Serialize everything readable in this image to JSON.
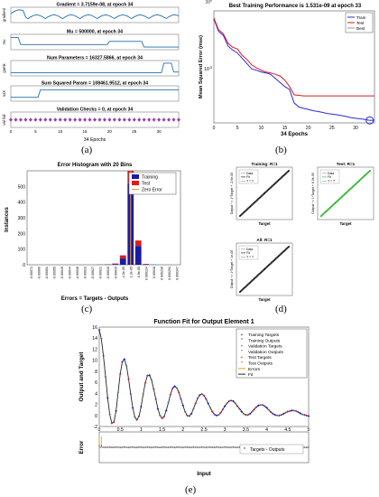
{
  "captions": {
    "a": "(a)",
    "b": "(b)",
    "c": "(c)",
    "d": "(d)",
    "e": "(e)"
  },
  "panel_a": {
    "xlabel": "34 Epochs",
    "subplots": [
      {
        "title": "Gradient = 3.7159e-08, at epoch 34",
        "ylabel": "gradient"
      },
      {
        "title": "Mu = 500000, at epoch 34",
        "ylabel": "mu"
      },
      {
        "title": "Num Parameters = 16327.5866, at epoch 34",
        "ylabel": "gamk"
      },
      {
        "title": "Sum Squared Param = 108461.9512, at epoch 34",
        "ylabel": "ssX"
      },
      {
        "title": "Validation Checks = 0, at epoch 34",
        "ylabel": "val fail"
      }
    ],
    "ticks": [
      "0",
      "5",
      "10",
      "15",
      "20",
      "25",
      "30"
    ]
  },
  "panel_d": {
    "training_title": "Training: R=1",
    "test_title": "Test: R=1",
    "all_title": "All: R=1",
    "xlabel": "Target",
    "ylabel_training": "Output ~= 1*Target + -2.6e-06",
    "ylabel_test": "Output ~= 1*Target + 6.3e-06",
    "ylabel_all": "Output ~= 1*Target + 1e-06",
    "legend": [
      "Data",
      "Fit",
      "Y = T"
    ]
  },
  "chart_data": [
    {
      "id": "b",
      "type": "line",
      "title": "Best Training Performance is 1.531e-09 at epoch 33",
      "xlabel": "34 Epochs",
      "ylabel": "Mean Squared Error (mse)",
      "yscale": "log",
      "xlim": [
        0,
        34
      ],
      "x": [
        0,
        1,
        2,
        3,
        4,
        5,
        6,
        7,
        8,
        9,
        10,
        11,
        12,
        13,
        14,
        15,
        16,
        17,
        18,
        19,
        20,
        21,
        22,
        23,
        24,
        25,
        26,
        27,
        28,
        29,
        30,
        31,
        32,
        33,
        34
      ],
      "series": [
        {
          "name": "Train",
          "color": "#2b2bd9",
          "values": [
            0.05,
            0.006,
            0.003,
            0.0005,
            0.00025,
            0.00015,
            6e-05,
            2.5e-05,
            1e-05,
            8e-06,
            6e-06,
            5e-06,
            4e-06,
            2e-06,
            1e-06,
            5e-07,
            3e-07,
            3e-08,
            1.5e-08,
            1.2e-08,
            1e-08,
            8e-09,
            7e-09,
            6e-09,
            5e-09,
            4.5e-09,
            4e-09,
            3.5e-09,
            3e-09,
            2.5e-09,
            2.2e-09,
            2e-09,
            1.8e-09,
            1.531e-09,
            1.6e-09
          ]
        },
        {
          "name": "Test",
          "color": "#dd1a1a",
          "values": [
            0.06,
            0.008,
            0.004,
            0.0008,
            0.0004,
            0.0003,
            0.0001,
            5e-05,
            2e-05,
            1.2e-05,
            8e-06,
            6e-06,
            5e-06,
            4e-06,
            3e-06,
            1.5e-06,
            5e-07,
            1.2e-07,
            1.1e-07,
            1e-07,
            1e-07,
            1e-07,
            1e-07,
            1e-07,
            1e-07,
            1e-07,
            1e-07,
            1e-07,
            1e-07,
            1e-07,
            1e-07,
            1e-07,
            1e-07,
            1e-07,
            1e-07
          ]
        }
      ],
      "best": {
        "x": 33,
        "y": 1.531e-09
      },
      "legend": [
        "Train",
        "Test",
        "Best"
      ],
      "ytick_labels": [
        "10^0",
        "10^-5"
      ]
    },
    {
      "id": "c",
      "type": "bar",
      "title": "Error Histogram with 20 Bins",
      "xlabel": "Errors = Targets - Outputs",
      "ylabel": "Instances",
      "ylim": [
        0,
        600
      ],
      "yticks": [
        0,
        100,
        200,
        300,
        400,
        500
      ],
      "categories": [
        "-0.00072",
        "-0.00066",
        "-0.00061",
        "-0.00055",
        "-0.00049",
        "-0.00044",
        "-0.00038",
        "-0.00033",
        "-0.00027",
        "-0.00021",
        "-0.00016",
        "-0.00010",
        "-4.3e-05",
        "1.3e-05",
        "6.9e-05",
        "0.000124",
        "0.00018",
        "0.000236",
        "0.000291",
        "0.000347"
      ],
      "series": [
        {
          "name": "Training",
          "color": "#1a1aa6",
          "values": [
            0,
            0,
            0,
            0,
            0,
            0,
            0,
            0,
            0,
            1,
            2,
            5,
            40,
            520,
            120,
            3,
            1,
            0,
            0,
            0
          ]
        },
        {
          "name": "Test",
          "color": "#d81e1e",
          "values": [
            0,
            0,
            0,
            0,
            0,
            0,
            0,
            0,
            0,
            0,
            1,
            3,
            20,
            80,
            35,
            2,
            0,
            0,
            0,
            0
          ]
        }
      ],
      "zero_error_label": "Zero Error",
      "legend": [
        "Training",
        "Test",
        "Zero Error"
      ]
    },
    {
      "id": "e",
      "type": "line",
      "title": "Function Fit for Output Element 1",
      "xlabel": "Input",
      "ylabel": "Output and Target",
      "xlim": [
        0,
        5
      ],
      "ylim": [
        -2,
        16
      ],
      "xticks": [
        "0",
        "0.5",
        "1",
        "1.5",
        "2",
        "2.5",
        "3",
        "3.5",
        "4",
        "4.5",
        "5"
      ],
      "yticks": [
        "-2",
        "0",
        "2",
        "4",
        "6",
        "8",
        "10",
        "12",
        "14",
        "16"
      ],
      "x": [
        0,
        0.05,
        0.1,
        0.15,
        0.2,
        0.25,
        0.3,
        0.35,
        0.4,
        0.45,
        0.5,
        0.55,
        0.6,
        0.65,
        0.7,
        0.75,
        0.8,
        0.85,
        0.9,
        0.95,
        1,
        1.05,
        1.1,
        1.15,
        1.2,
        1.25,
        1.3,
        1.35,
        1.4,
        1.45,
        1.5,
        1.55,
        1.6,
        1.65,
        1.7,
        1.75,
        1.8,
        1.85,
        1.9,
        1.95,
        2,
        2.05,
        2.1,
        2.15,
        2.2,
        2.25,
        2.3,
        2.35,
        2.4,
        2.45,
        2.5,
        2.55,
        2.6,
        2.65,
        2.7,
        2.75,
        2.8,
        2.85,
        2.9,
        2.95,
        3,
        3.05,
        3.1,
        3.15,
        3.2,
        3.25,
        3.3,
        3.35,
        3.4,
        3.45,
        3.5,
        3.55,
        3.6,
        3.65,
        3.7,
        3.75,
        3.8,
        3.85,
        3.9,
        3.95,
        4,
        4.05,
        4.1,
        4.15,
        4.2,
        4.25,
        4.3,
        4.35,
        4.4,
        4.45,
        4.5,
        4.55,
        4.6,
        4.65,
        4.7,
        4.75,
        4.8,
        4.85,
        4.9,
        4.95,
        5
      ],
      "values": [
        15.5,
        13.9,
        10.8,
        7.0,
        3.2,
        0.2,
        -1.4,
        -1.2,
        0.8,
        4.2,
        7.5,
        9.7,
        10.2,
        9.0,
        6.6,
        3.9,
        1.4,
        -0.3,
        -0.8,
        -0.1,
        1.6,
        3.9,
        5.9,
        7.2,
        7.3,
        6.4,
        4.8,
        3.0,
        1.2,
        0.0,
        -0.5,
        -0.2,
        0.9,
        2.3,
        3.8,
        4.9,
        5.3,
        5.0,
        4.2,
        3.0,
        1.8,
        0.7,
        0.0,
        -0.1,
        0.3,
        1.2,
        2.2,
        3.1,
        3.7,
        3.9,
        3.6,
        3.0,
        2.2,
        1.4,
        0.7,
        0.2,
        0.0,
        0.1,
        0.5,
        1.1,
        1.7,
        2.2,
        2.6,
        2.7,
        2.6,
        2.2,
        1.7,
        1.2,
        0.7,
        0.3,
        0.1,
        0.1,
        0.3,
        0.7,
        1.1,
        1.5,
        1.8,
        1.9,
        1.9,
        1.7,
        1.4,
        1.0,
        0.6,
        0.3,
        0.1,
        0.0,
        0.0,
        0.1,
        0.3,
        0.5,
        0.7,
        0.8,
        0.9,
        0.9,
        0.8,
        0.6,
        0.4,
        0.2,
        0.1,
        0.0,
        -0.1
      ],
      "legend": [
        "Training Targets",
        "Training Outputs",
        "Validation Targets",
        "Validation Outputs",
        "Test Targets",
        "Test Outputs",
        "Errors",
        "Fit"
      ],
      "error_panel": {
        "ylabel": "Error",
        "legend": "Targets - Outputs",
        "ylim": [
          -0.001,
          0.001
        ]
      }
    }
  ]
}
